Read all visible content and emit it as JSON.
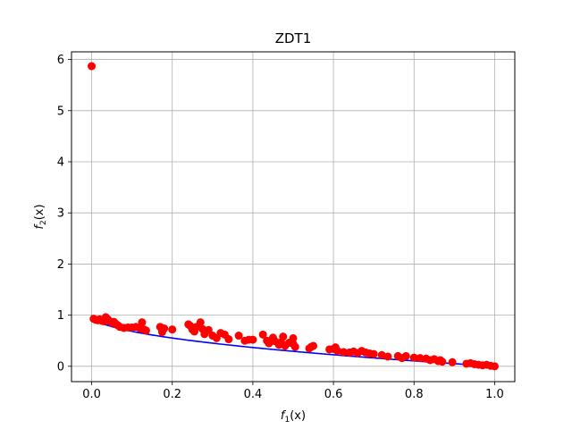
{
  "chart_data": {
    "type": "scatter",
    "title": "ZDT1",
    "xlabel": {
      "base": "f",
      "sub": "1",
      "arg": "(x)"
    },
    "ylabel": {
      "base": "f",
      "sub": "2",
      "arg": "(x)"
    },
    "xlim": [
      -0.05,
      1.05
    ],
    "ylim": [
      -0.3,
      6.15
    ],
    "xticks": [
      0.0,
      0.2,
      0.4,
      0.6,
      0.8,
      1.0
    ],
    "xtick_labels": [
      "0.0",
      "0.2",
      "0.4",
      "0.6",
      "0.8",
      "1.0"
    ],
    "yticks": [
      0,
      1,
      2,
      3,
      4,
      5,
      6
    ],
    "ytick_labels": [
      "0",
      "1",
      "2",
      "3",
      "4",
      "5",
      "6"
    ],
    "grid": true,
    "series": [
      {
        "type": "line",
        "color": "#0000ff",
        "function": "1 - sqrt(x)",
        "x_range": [
          0,
          1
        ]
      },
      {
        "type": "scatter",
        "color": "#ff0000",
        "points": [
          [
            0.0,
            5.87
          ],
          [
            0.005,
            0.93
          ],
          [
            0.01,
            0.91
          ],
          [
            0.015,
            0.9
          ],
          [
            0.02,
            0.92
          ],
          [
            0.025,
            0.89
          ],
          [
            0.03,
            0.88
          ],
          [
            0.035,
            0.96
          ],
          [
            0.04,
            0.92
          ],
          [
            0.045,
            0.88
          ],
          [
            0.05,
            0.85
          ],
          [
            0.055,
            0.87
          ],
          [
            0.06,
            0.83
          ],
          [
            0.065,
            0.8
          ],
          [
            0.07,
            0.77
          ],
          [
            0.08,
            0.75
          ],
          [
            0.09,
            0.76
          ],
          [
            0.1,
            0.76
          ],
          [
            0.11,
            0.77
          ],
          [
            0.12,
            0.74
          ],
          [
            0.125,
            0.86
          ],
          [
            0.13,
            0.72
          ],
          [
            0.135,
            0.7
          ],
          [
            0.17,
            0.77
          ],
          [
            0.175,
            0.67
          ],
          [
            0.18,
            0.74
          ],
          [
            0.2,
            0.72
          ],
          [
            0.24,
            0.82
          ],
          [
            0.245,
            0.79
          ],
          [
            0.25,
            0.72
          ],
          [
            0.255,
            0.68
          ],
          [
            0.26,
            0.77
          ],
          [
            0.27,
            0.86
          ],
          [
            0.275,
            0.73
          ],
          [
            0.28,
            0.63
          ],
          [
            0.29,
            0.71
          ],
          [
            0.3,
            0.6
          ],
          [
            0.31,
            0.55
          ],
          [
            0.32,
            0.65
          ],
          [
            0.33,
            0.62
          ],
          [
            0.34,
            0.53
          ],
          [
            0.365,
            0.6
          ],
          [
            0.38,
            0.5
          ],
          [
            0.39,
            0.52
          ],
          [
            0.4,
            0.52
          ],
          [
            0.425,
            0.62
          ],
          [
            0.435,
            0.5
          ],
          [
            0.44,
            0.45
          ],
          [
            0.45,
            0.56
          ],
          [
            0.455,
            0.49
          ],
          [
            0.465,
            0.42
          ],
          [
            0.47,
            0.47
          ],
          [
            0.475,
            0.58
          ],
          [
            0.48,
            0.4
          ],
          [
            0.49,
            0.46
          ],
          [
            0.5,
            0.44
          ],
          [
            0.5,
            0.55
          ],
          [
            0.505,
            0.38
          ],
          [
            0.54,
            0.35
          ],
          [
            0.545,
            0.38
          ],
          [
            0.55,
            0.4
          ],
          [
            0.59,
            0.33
          ],
          [
            0.6,
            0.34
          ],
          [
            0.605,
            0.37
          ],
          [
            0.61,
            0.3
          ],
          [
            0.625,
            0.28
          ],
          [
            0.64,
            0.27
          ],
          [
            0.65,
            0.29
          ],
          [
            0.66,
            0.26
          ],
          [
            0.67,
            0.3
          ],
          [
            0.68,
            0.27
          ],
          [
            0.69,
            0.25
          ],
          [
            0.7,
            0.24
          ],
          [
            0.72,
            0.22
          ],
          [
            0.735,
            0.19
          ],
          [
            0.76,
            0.2
          ],
          [
            0.77,
            0.16
          ],
          [
            0.78,
            0.2
          ],
          [
            0.8,
            0.17
          ],
          [
            0.815,
            0.16
          ],
          [
            0.83,
            0.15
          ],
          [
            0.84,
            0.12
          ],
          [
            0.85,
            0.14
          ],
          [
            0.86,
            0.1
          ],
          [
            0.865,
            0.12
          ],
          [
            0.87,
            0.09
          ],
          [
            0.895,
            0.08
          ],
          [
            0.93,
            0.05
          ],
          [
            0.94,
            0.06
          ],
          [
            0.95,
            0.04
          ],
          [
            0.96,
            0.03
          ],
          [
            0.97,
            0.02
          ],
          [
            0.98,
            0.03
          ],
          [
            0.99,
            0.01
          ],
          [
            1.0,
            0.0
          ]
        ]
      }
    ]
  }
}
